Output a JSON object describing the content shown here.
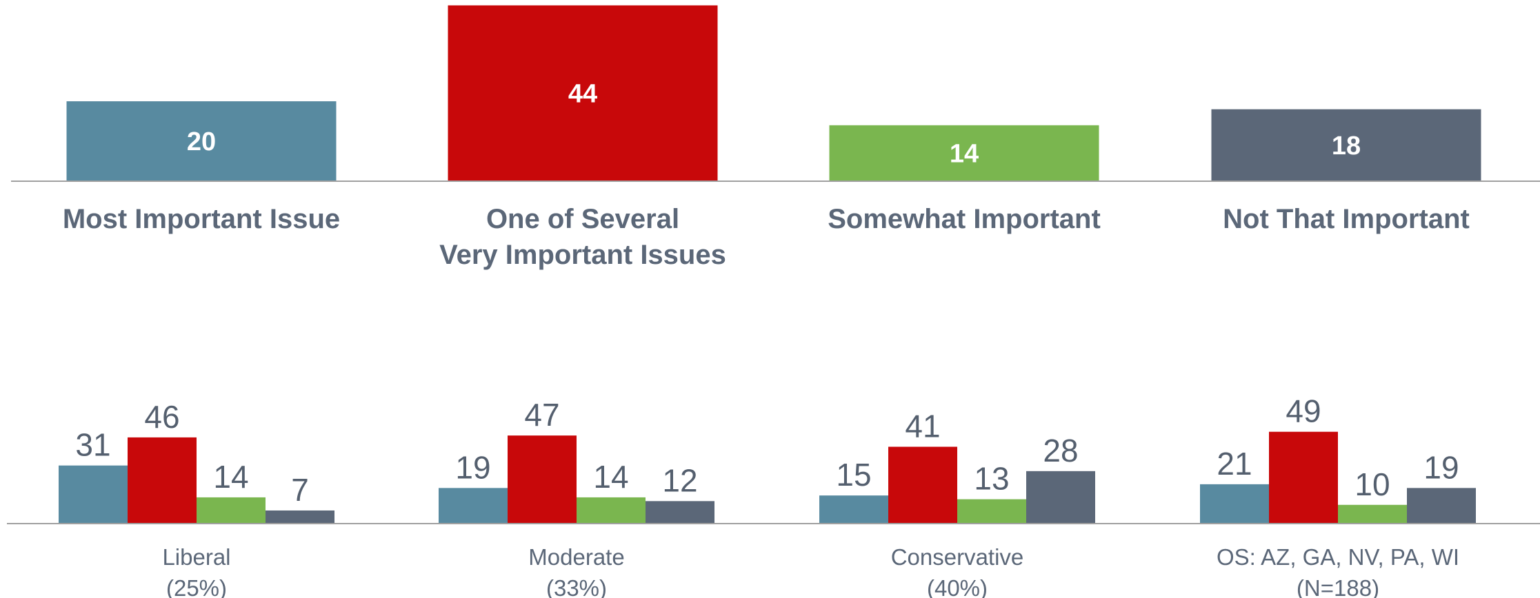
{
  "colors": {
    "most_important": "#588aa0",
    "one_of_several": "#c8080a",
    "somewhat_important": "#7ab64f",
    "not_that_important": "#5b6778",
    "text": "#5b6778",
    "axis": "#a0a0a0"
  },
  "chart_data": [
    {
      "type": "bar",
      "categories": [
        [
          "Most Important Issue"
        ],
        [
          "One of Several",
          "Very Important Issues"
        ],
        [
          "Somewhat Important"
        ],
        [
          "Not That Important"
        ]
      ],
      "values": [
        20,
        44,
        14,
        18
      ],
      "ylim": [
        0,
        45
      ],
      "grid": false
    },
    {
      "type": "bar",
      "groups": [
        [
          "Liberal",
          "(25%)"
        ],
        [
          "Moderate",
          "(33%)"
        ],
        [
          "Conservative",
          "(40%)"
        ],
        [
          "OS: AZ, GA, NV, PA, WI",
          "(N=188)"
        ]
      ],
      "series": [
        {
          "values": [
            31,
            19,
            15,
            21
          ]
        },
        {
          "values": [
            46,
            47,
            41,
            49
          ]
        },
        {
          "values": [
            14,
            14,
            13,
            10
          ]
        },
        {
          "values": [
            7,
            12,
            28,
            19
          ]
        }
      ],
      "ylim": [
        0,
        60
      ],
      "grid": false
    }
  ]
}
